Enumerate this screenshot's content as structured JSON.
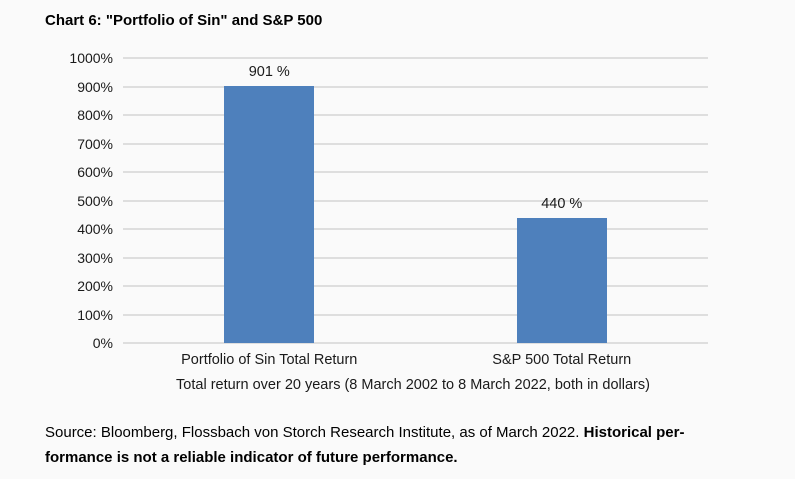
{
  "chart_data": {
    "type": "bar",
    "title": "Chart 6: \"Portfolio of Sin\" and S&P 500",
    "categories": [
      "Portfolio of Sin Total Return",
      "S&P 500 Total Return"
    ],
    "values": [
      901,
      440
    ],
    "data_labels": [
      "901 %",
      "440 %"
    ],
    "xlabel": "Total return over 20 years (8 March 2002 to 8 March 2022, both in dollars)",
    "ylabel": "",
    "ylim": [
      0,
      1000
    ],
    "yticks": [
      0,
      100,
      200,
      300,
      400,
      500,
      600,
      700,
      800,
      900,
      1000
    ],
    "ytick_labels": [
      "0%",
      "100%",
      "200%",
      "300%",
      "400%",
      "500%",
      "600%",
      "700%",
      "800%",
      "900%",
      "1000%"
    ],
    "grid": true,
    "legend": false,
    "bar_color": "#4E80BC"
  },
  "footer": {
    "line1_regular": "Source: Bloomberg, Flossbach von Storch Research Institute, as of March 2022.",
    "line1_bold": "Historical per-",
    "line2_bold": "formance is not a reliable indicator of future performance."
  },
  "colors": {
    "background": "#FAFAFA",
    "gridline": "#DEDEDE",
    "bar": "#4E80BC",
    "text": "#1A1A1A"
  }
}
